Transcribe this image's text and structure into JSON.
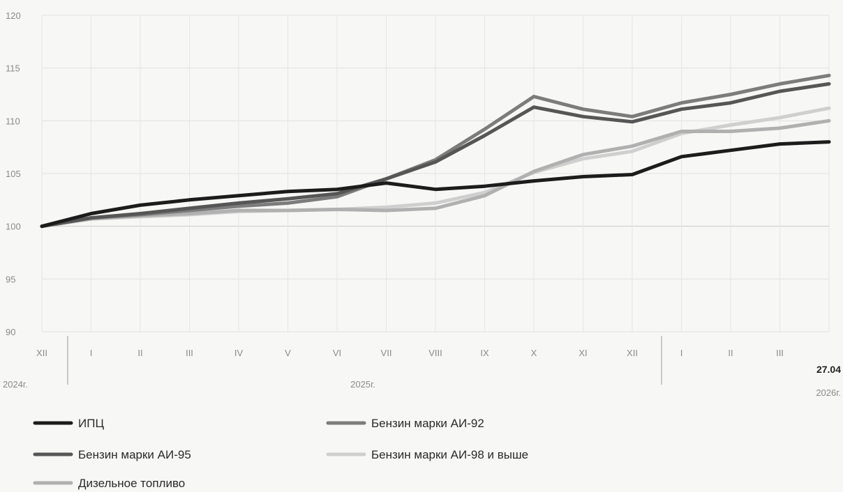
{
  "chart_data": {
    "type": "line",
    "title": "",
    "xlabel": "",
    "ylabel": "",
    "ylim": [
      90,
      120
    ],
    "yticks": [
      90,
      95,
      100,
      105,
      110,
      115,
      120
    ],
    "grid": true,
    "legend_position": "bottom",
    "categories": [
      "XII",
      "I",
      "II",
      "III",
      "IV",
      "V",
      "VI",
      "VII",
      "VIII",
      "IX",
      "X",
      "XI",
      "XII",
      "I",
      "II",
      "III",
      "27.04"
    ],
    "year_labels": [
      "2024г.",
      "2025г.",
      "2026г."
    ],
    "series": [
      {
        "name": "ИПЦ",
        "color": "#1c1c1c",
        "values": [
          100.0,
          101.2,
          102.0,
          102.5,
          102.9,
          103.3,
          103.5,
          104.1,
          103.5,
          103.8,
          104.3,
          104.7,
          104.9,
          106.6,
          107.2,
          107.8,
          108.0
        ]
      },
      {
        "name": "Бензин марки АИ-92",
        "color": "#7c7c7c",
        "values": [
          100.0,
          100.8,
          101.1,
          101.5,
          101.9,
          102.2,
          102.8,
          104.5,
          106.3,
          109.2,
          112.3,
          111.1,
          110.4,
          111.7,
          112.5,
          113.5,
          114.3
        ]
      },
      {
        "name": "Бензин марки АИ-95",
        "color": "#565656",
        "values": [
          100.0,
          100.8,
          101.2,
          101.7,
          102.2,
          102.6,
          103.1,
          104.5,
          106.1,
          108.6,
          111.3,
          110.4,
          109.9,
          111.1,
          111.7,
          112.8,
          113.5
        ]
      },
      {
        "name": "Бензин марки АИ-98 и выше",
        "color": "#cfcfcf",
        "values": [
          100.0,
          100.7,
          100.9,
          101.1,
          101.4,
          101.5,
          101.6,
          101.8,
          102.2,
          103.2,
          105.1,
          106.4,
          107.1,
          108.8,
          109.6,
          110.3,
          111.2
        ]
      },
      {
        "name": "Дизельное топливо",
        "color": "#b0b0b0",
        "values": [
          100.0,
          100.7,
          101.0,
          101.2,
          101.5,
          101.5,
          101.6,
          101.5,
          101.7,
          102.9,
          105.2,
          106.8,
          107.6,
          109.0,
          109.0,
          109.3,
          110.0
        ]
      }
    ]
  },
  "legend_order": [
    [
      0,
      1
    ],
    [
      2,
      3
    ],
    [
      4
    ]
  ]
}
